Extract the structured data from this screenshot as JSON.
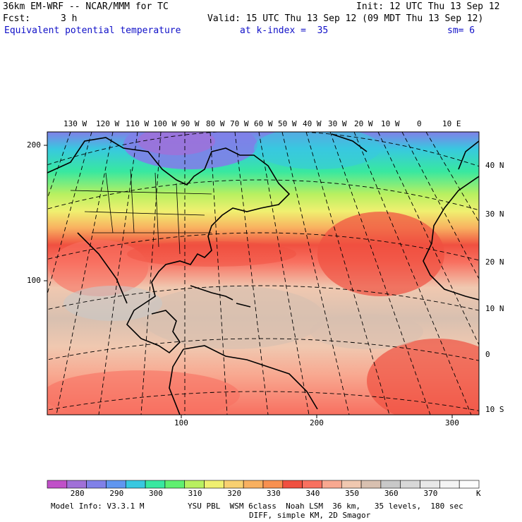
{
  "header": {
    "model": "36km EM-WRF -- NCAR/MMM for TC",
    "init": "Init: 12 UTC Thu 13 Sep 12",
    "fcst_label": "Fcst:",
    "fcst_value": "3 h",
    "valid": "Valid: 15 UTC Thu 13 Sep 12 (09 MDT Thu 13 Sep 12)",
    "field": "Equivalent potential temperature",
    "level": "at k-index =  35",
    "smoothing": "sm= 6"
  },
  "top_lon_labels": [
    "130 W",
    "120 W",
    "110 W",
    "100 W",
    "90 W",
    "80 W",
    "70 W",
    "60 W",
    "50 W",
    "40 W",
    "30 W",
    "20 W",
    "10 W",
    "0",
    "10 E"
  ],
  "right_lat_labels": [
    "40 N",
    "30 N",
    "20 N",
    "10 N",
    "0",
    "10 S"
  ],
  "left_grid_labels": [
    "200",
    "100"
  ],
  "bottom_grid_labels": [
    "100",
    "200",
    "300"
  ],
  "colorbar": {
    "labels": [
      "280",
      "290",
      "300",
      "310",
      "320",
      "330",
      "340",
      "350",
      "360",
      "370"
    ],
    "units": "K",
    "colors": [
      "#c050c8",
      "#a070d8",
      "#8080e8",
      "#6096f0",
      "#38c8e0",
      "#38e8a0",
      "#60f070",
      "#b8f060",
      "#f0f070",
      "#f8d070",
      "#f8b060",
      "#f89050",
      "#f05040",
      "#f87060",
      "#f8a890",
      "#f0c8b0",
      "#d8c0b0",
      "#c8c8c8",
      "#d8d8d8",
      "#e8e8e8",
      "#f4f4f4",
      "#fcfcfc"
    ]
  },
  "footer": {
    "line1_left": "Model Info: V3.3.1 M",
    "line1_right": "YSU PBL  WSM 6class  Noah LSM  36 km,   35 levels,  180 sec",
    "line2": "DIFF, simple KM, 2D Smagor"
  }
}
